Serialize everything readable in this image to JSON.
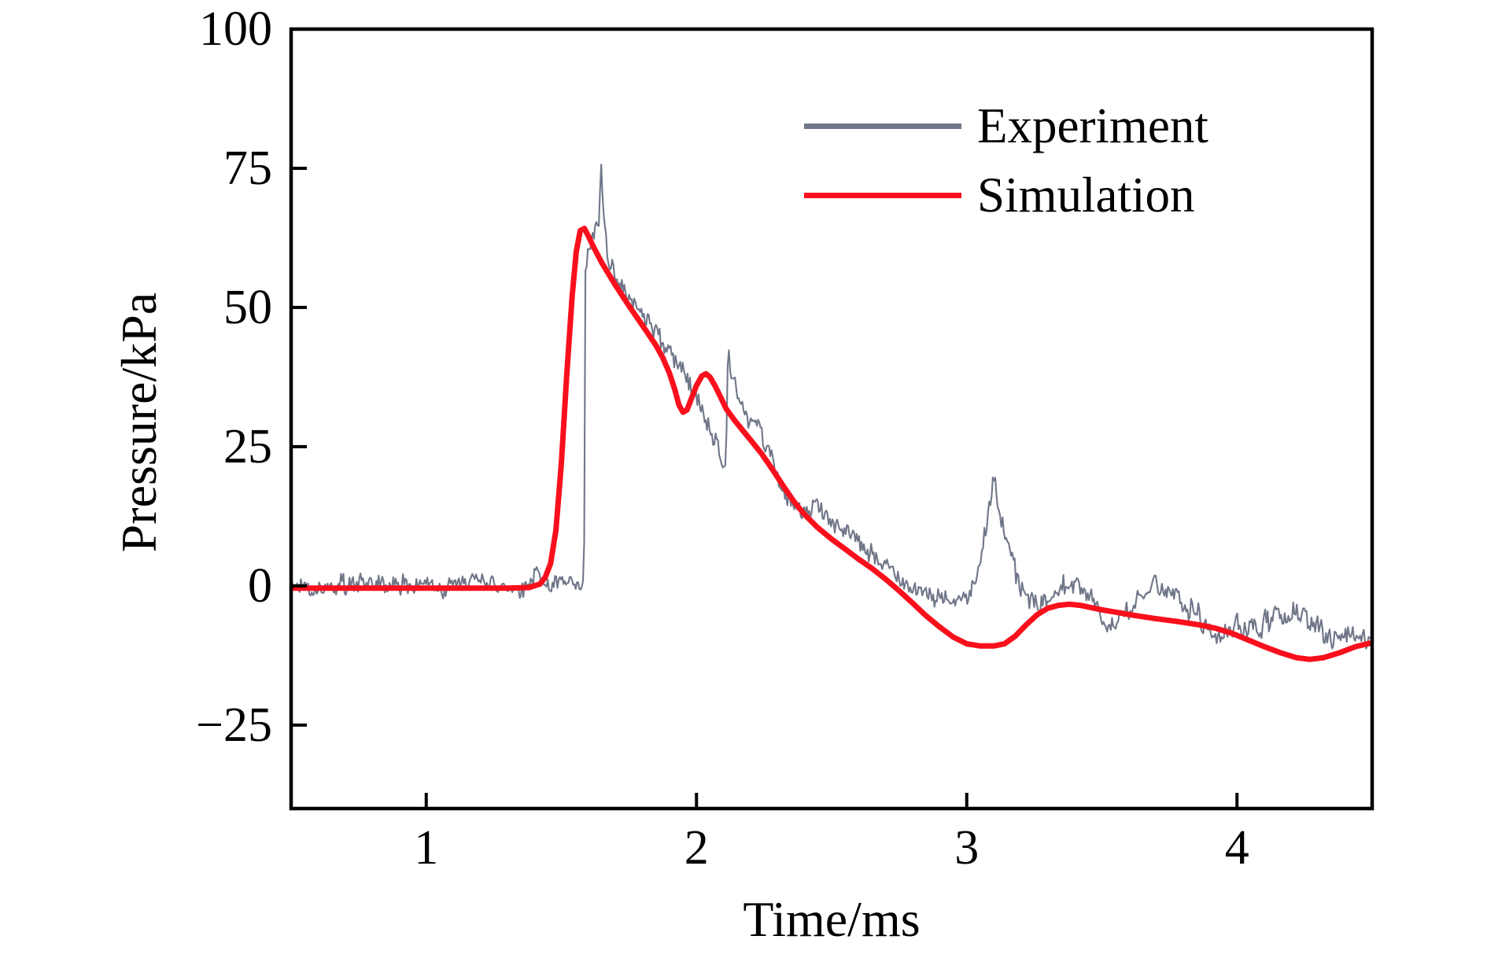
{
  "chart_data": {
    "type": "line",
    "title": "",
    "xlabel": "Time/ms",
    "ylabel": "Pressure/kPa",
    "xlim": [
      0.5,
      4.5
    ],
    "ylim": [
      -40,
      100
    ],
    "xticks": [
      1,
      2,
      3,
      4
    ],
    "xtick_labels": [
      "1",
      "2",
      "3",
      "4"
    ],
    "yticks": [
      -25,
      0,
      25,
      50,
      75,
      100
    ],
    "ytick_labels": [
      "−25",
      "0",
      "25",
      "50",
      "75",
      "100"
    ],
    "grid": false,
    "legend_position": "upper right",
    "axis_color": "#000000",
    "background_color": "#ffffff",
    "series": [
      {
        "name": "Experiment",
        "color": "#707789",
        "style": "noisy",
        "line_width": 2.1,
        "noise": {
          "description": "high-frequency sensor noise, roughly ±2–4 kPa about the base trace",
          "amplitude_profile": [
            [
              0.5,
              2.3
            ],
            [
              1.33,
              2.4
            ],
            [
              1.42,
              3.0
            ],
            [
              1.5,
              2.4
            ],
            [
              1.58,
              2.2
            ],
            [
              1.62,
              2.7
            ],
            [
              1.8,
              2.8
            ],
            [
              2.1,
              2.8
            ],
            [
              2.4,
              2.6
            ],
            [
              2.7,
              2.4
            ],
            [
              3.0,
              2.6
            ],
            [
              3.3,
              2.8
            ],
            [
              3.7,
              2.9
            ],
            [
              3.95,
              3.2
            ],
            [
              4.2,
              3.0
            ],
            [
              4.5,
              2.9
            ]
          ]
        },
        "points": [
          [
            0.5,
            0
          ],
          [
            0.8,
            0
          ],
          [
            1.1,
            0
          ],
          [
            1.25,
            0
          ],
          [
            1.38,
            0.3
          ],
          [
            1.42,
            1.0
          ],
          [
            1.47,
            1.0
          ],
          [
            1.52,
            -0.3
          ],
          [
            1.56,
            -0.5
          ],
          [
            1.583,
            -0.5
          ],
          [
            1.586,
            12
          ],
          [
            1.589,
            55
          ],
          [
            1.6,
            60
          ],
          [
            1.615,
            62
          ],
          [
            1.63,
            63.5
          ],
          [
            1.64,
            66
          ],
          [
            1.645,
            73.5
          ],
          [
            1.648,
            74.3
          ],
          [
            1.652,
            70
          ],
          [
            1.658,
            65
          ],
          [
            1.665,
            62
          ],
          [
            1.68,
            58.5
          ],
          [
            1.7,
            56.5
          ],
          [
            1.72,
            54
          ],
          [
            1.75,
            52
          ],
          [
            1.78,
            50.5
          ],
          [
            1.82,
            48.5
          ],
          [
            1.86,
            46
          ],
          [
            1.9,
            42.5
          ],
          [
            1.93,
            40
          ],
          [
            1.96,
            38.5
          ],
          [
            1.99,
            35
          ],
          [
            2.02,
            31
          ],
          [
            2.05,
            28.5
          ],
          [
            2.08,
            24.5
          ],
          [
            2.1,
            21.5
          ],
          [
            2.108,
            21
          ],
          [
            2.113,
            34
          ],
          [
            2.118,
            43.5
          ],
          [
            2.123,
            41
          ],
          [
            2.13,
            38
          ],
          [
            2.14,
            36
          ],
          [
            2.16,
            33.5
          ],
          [
            2.19,
            30.5
          ],
          [
            2.22,
            27.5
          ],
          [
            2.25,
            24.5
          ],
          [
            2.28,
            21.5
          ],
          [
            2.31,
            18
          ],
          [
            2.34,
            15.5
          ],
          [
            2.38,
            13.5
          ],
          [
            2.42,
            13.3
          ],
          [
            2.46,
            14.3
          ],
          [
            2.5,
            12.5
          ],
          [
            2.54,
            10.5
          ],
          [
            2.58,
            9
          ],
          [
            2.62,
            7.2
          ],
          [
            2.66,
            5.5
          ],
          [
            2.7,
            3.5
          ],
          [
            2.74,
            2
          ],
          [
            2.78,
            0.8
          ],
          [
            2.82,
            -0.3
          ],
          [
            2.86,
            -1.5
          ],
          [
            2.9,
            -2.5
          ],
          [
            2.94,
            -3.2
          ],
          [
            2.98,
            -3
          ],
          [
            3.01,
            -1.5
          ],
          [
            3.04,
            2
          ],
          [
            3.06,
            7
          ],
          [
            3.08,
            12.5
          ],
          [
            3.095,
            17
          ],
          [
            3.105,
            19
          ],
          [
            3.115,
            16
          ],
          [
            3.13,
            11.5
          ],
          [
            3.15,
            7
          ],
          [
            3.17,
            3.5
          ],
          [
            3.19,
            0.5
          ],
          [
            3.22,
            -2
          ],
          [
            3.26,
            -3.5
          ],
          [
            3.3,
            -2.5
          ],
          [
            3.34,
            -0.8
          ],
          [
            3.38,
            0.3
          ],
          [
            3.42,
            -0.5
          ],
          [
            3.46,
            -2.5
          ],
          [
            3.5,
            -5
          ],
          [
            3.54,
            -7
          ],
          [
            3.58,
            -6
          ],
          [
            3.62,
            -3.5
          ],
          [
            3.66,
            -1.2
          ],
          [
            3.7,
            -0.4
          ],
          [
            3.74,
            -0.8
          ],
          [
            3.78,
            -1.8
          ],
          [
            3.82,
            -3.5
          ],
          [
            3.86,
            -6
          ],
          [
            3.9,
            -9
          ],
          [
            3.93,
            -10
          ],
          [
            3.96,
            -8.5
          ],
          [
            4.0,
            -7.5
          ],
          [
            4.04,
            -7.8
          ],
          [
            4.07,
            -9.2
          ],
          [
            4.1,
            -7.5
          ],
          [
            4.14,
            -6.2
          ],
          [
            4.18,
            -5.6
          ],
          [
            4.22,
            -6
          ],
          [
            4.26,
            -6.6
          ],
          [
            4.3,
            -7.6
          ],
          [
            4.34,
            -8.2
          ],
          [
            4.4,
            -8.2
          ],
          [
            4.45,
            -8.6
          ],
          [
            4.5,
            -9.2
          ]
        ]
      },
      {
        "name": "Simulation",
        "color": "#fa0f1c",
        "style": "smooth",
        "line_width": 7,
        "points": [
          [
            0.5,
            -0.4
          ],
          [
            1.0,
            -0.4
          ],
          [
            1.3,
            -0.4
          ],
          [
            1.38,
            -0.3
          ],
          [
            1.42,
            0.3
          ],
          [
            1.44,
            1.5
          ],
          [
            1.46,
            4
          ],
          [
            1.48,
            10
          ],
          [
            1.5,
            22
          ],
          [
            1.52,
            38
          ],
          [
            1.54,
            52
          ],
          [
            1.555,
            60
          ],
          [
            1.57,
            63.8
          ],
          [
            1.585,
            64.2
          ],
          [
            1.6,
            62.8
          ],
          [
            1.62,
            60.8
          ],
          [
            1.65,
            58
          ],
          [
            1.7,
            54
          ],
          [
            1.75,
            50.3
          ],
          [
            1.8,
            46.8
          ],
          [
            1.85,
            43.2
          ],
          [
            1.875,
            41
          ],
          [
            1.9,
            38.2
          ],
          [
            1.92,
            35.2
          ],
          [
            1.935,
            32.5
          ],
          [
            1.95,
            31.2
          ],
          [
            1.965,
            31.6
          ],
          [
            1.98,
            33.5
          ],
          [
            2.0,
            36
          ],
          [
            2.02,
            37.7
          ],
          [
            2.035,
            38.1
          ],
          [
            2.05,
            37.5
          ],
          [
            2.07,
            35.8
          ],
          [
            2.09,
            33.8
          ],
          [
            2.11,
            31.8
          ],
          [
            2.14,
            29.8
          ],
          [
            2.17,
            28
          ],
          [
            2.2,
            26.2
          ],
          [
            2.24,
            23.8
          ],
          [
            2.28,
            21
          ],
          [
            2.32,
            18
          ],
          [
            2.36,
            15.2
          ],
          [
            2.4,
            12.8
          ],
          [
            2.45,
            10.4
          ],
          [
            2.5,
            8.4
          ],
          [
            2.55,
            6.6
          ],
          [
            2.6,
            4.8
          ],
          [
            2.65,
            3.1
          ],
          [
            2.7,
            1.2
          ],
          [
            2.75,
            -0.9
          ],
          [
            2.8,
            -3.1
          ],
          [
            2.85,
            -5.4
          ],
          [
            2.9,
            -7.4
          ],
          [
            2.95,
            -9.2
          ],
          [
            3.0,
            -10.4
          ],
          [
            3.05,
            -10.8
          ],
          [
            3.1,
            -10.8
          ],
          [
            3.14,
            -10.4
          ],
          [
            3.18,
            -9
          ],
          [
            3.22,
            -7
          ],
          [
            3.26,
            -5.2
          ],
          [
            3.3,
            -4
          ],
          [
            3.34,
            -3.5
          ],
          [
            3.38,
            -3.3
          ],
          [
            3.42,
            -3.5
          ],
          [
            3.46,
            -3.9
          ],
          [
            3.5,
            -4.3
          ],
          [
            3.56,
            -4.8
          ],
          [
            3.62,
            -5.3
          ],
          [
            3.7,
            -5.9
          ],
          [
            3.78,
            -6.4
          ],
          [
            3.86,
            -7.0
          ],
          [
            3.92,
            -7.6
          ],
          [
            3.98,
            -8.5
          ],
          [
            4.04,
            -9.7
          ],
          [
            4.1,
            -10.9
          ],
          [
            4.16,
            -12
          ],
          [
            4.22,
            -12.9
          ],
          [
            4.27,
            -13.2
          ],
          [
            4.32,
            -12.9
          ],
          [
            4.38,
            -12
          ],
          [
            4.44,
            -10.9
          ],
          [
            4.5,
            -10.2
          ]
        ]
      }
    ]
  }
}
